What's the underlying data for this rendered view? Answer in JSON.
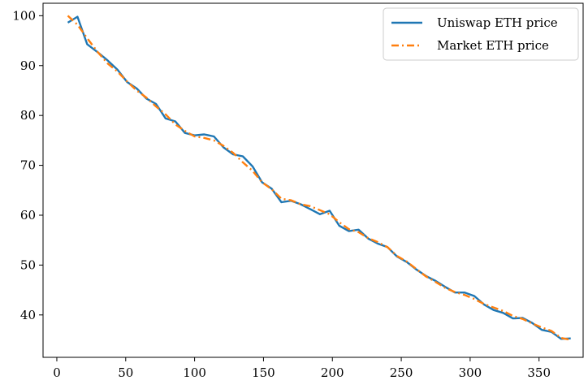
{
  "chart_data": {
    "type": "line",
    "title": "",
    "xlabel": "",
    "ylabel": "",
    "xlim": [
      -10,
      382
    ],
    "ylim": [
      31.5,
      102.5
    ],
    "xticks": [
      0,
      50,
      100,
      150,
      200,
      250,
      300,
      350
    ],
    "yticks": [
      40,
      50,
      60,
      70,
      80,
      90,
      100
    ],
    "grid": false,
    "legend_position": "top-right",
    "series": [
      {
        "name": "Uniswap ETH price",
        "color": "#1f77b4",
        "style": "solid",
        "x": [
          8,
          15,
          22,
          30,
          37,
          44,
          51,
          58,
          65,
          72,
          79,
          86,
          93,
          100,
          107,
          114,
          121,
          128,
          135,
          142,
          149,
          156,
          163,
          170,
          177,
          184,
          191,
          198,
          205,
          212,
          219,
          226,
          233,
          240,
          247,
          254,
          261,
          268,
          275,
          282,
          289,
          296,
          303,
          310,
          317,
          324,
          331,
          338,
          345,
          352,
          359,
          366,
          373
        ],
        "values": [
          98.6,
          99.8,
          94.3,
          92.6,
          91.0,
          89.2,
          86.7,
          85.4,
          83.4,
          82.3,
          79.4,
          78.8,
          76.5,
          76.0,
          76.2,
          75.8,
          73.6,
          72.2,
          71.8,
          69.8,
          66.6,
          65.3,
          62.6,
          62.9,
          62.2,
          61.2,
          60.2,
          60.9,
          57.9,
          56.8,
          57.1,
          55.3,
          54.3,
          53.6,
          51.7,
          50.6,
          49.1,
          47.8,
          46.8,
          45.6,
          44.5,
          44.5,
          43.8,
          42.1,
          41.0,
          40.4,
          39.3,
          39.4,
          38.4,
          37.0,
          36.6,
          35.2,
          35.3
        ]
      },
      {
        "name": "Market ETH price",
        "color": "#ff7f0e",
        "style": "dashdot",
        "x": [
          8,
          15,
          22,
          30,
          37,
          44,
          51,
          58,
          65,
          72,
          79,
          86,
          93,
          100,
          107,
          114,
          121,
          128,
          135,
          142,
          149,
          156,
          163,
          170,
          177,
          184,
          191,
          198,
          205,
          212,
          219,
          226,
          233,
          240,
          247,
          254,
          261,
          268,
          275,
          282,
          289,
          296,
          303,
          310,
          317,
          324,
          331,
          338,
          345,
          352,
          359,
          366,
          373
        ],
        "values": [
          100.0,
          98.2,
          95.5,
          92.6,
          90.4,
          88.8,
          86.8,
          85.0,
          83.6,
          81.8,
          80.2,
          78.2,
          76.9,
          75.8,
          75.5,
          75.0,
          73.9,
          72.5,
          70.6,
          68.9,
          66.6,
          65.2,
          63.3,
          63.0,
          62.2,
          61.8,
          61.0,
          60.2,
          58.6,
          57.2,
          56.6,
          55.4,
          54.6,
          53.6,
          51.8,
          50.7,
          49.2,
          47.7,
          46.6,
          45.4,
          44.6,
          44.0,
          43.2,
          42.2,
          41.5,
          40.8,
          39.8,
          39.2,
          38.3,
          37.5,
          36.8,
          35.4,
          35.0
        ]
      }
    ]
  }
}
